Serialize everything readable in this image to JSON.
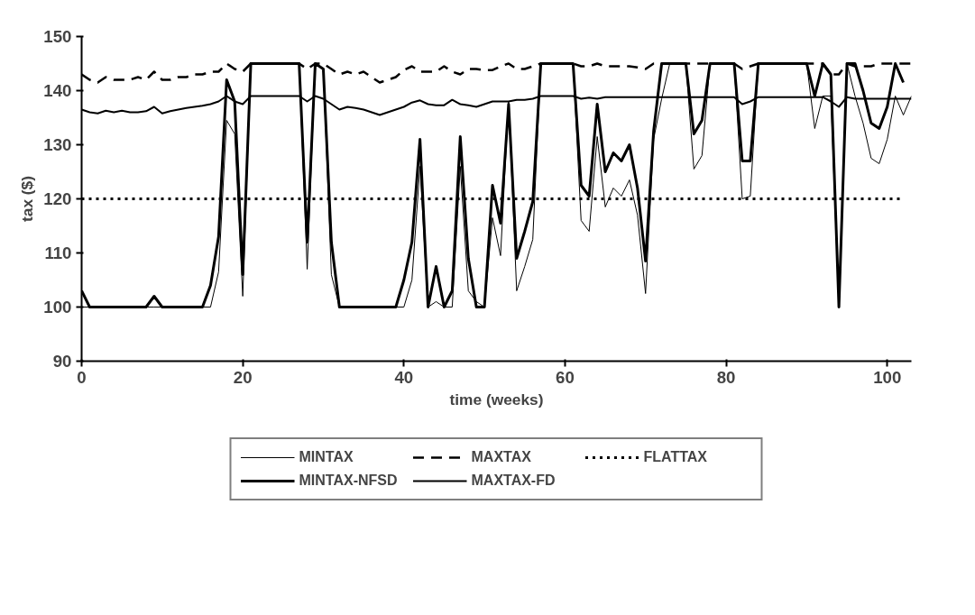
{
  "chart_data": {
    "type": "line",
    "xlabel": "time (weeks)",
    "ylabel": "tax ($)",
    "x": [
      0,
      1,
      2,
      3,
      4,
      5,
      6,
      7,
      8,
      9,
      10,
      11,
      12,
      13,
      14,
      15,
      16,
      17,
      18,
      19,
      20,
      21,
      22,
      23,
      24,
      25,
      26,
      27,
      28,
      29,
      30,
      31,
      32,
      33,
      34,
      35,
      36,
      37,
      38,
      39,
      40,
      41,
      42,
      43,
      44,
      45,
      46,
      47,
      48,
      49,
      50,
      51,
      52,
      53,
      54,
      55,
      56,
      57,
      58,
      59,
      60,
      61,
      62,
      63,
      64,
      65,
      66,
      67,
      68,
      69,
      70,
      71,
      72,
      73,
      74,
      75,
      76,
      77,
      78,
      79,
      80,
      81,
      82,
      83,
      84,
      85,
      86,
      87,
      88,
      89,
      90,
      91,
      92,
      93,
      94,
      95,
      96,
      97,
      98,
      99,
      100,
      101,
      102,
      103
    ],
    "series": [
      {
        "name": "MINTAX",
        "color": "#000000",
        "line_style": "solid",
        "values": [
          100,
          100,
          100,
          100,
          100,
          100,
          100,
          100,
          100,
          100,
          100,
          100,
          100,
          100,
          100,
          100,
          100,
          106.5,
          134.5,
          132,
          102,
          145,
          145,
          145,
          145,
          145,
          145,
          145,
          107,
          145,
          144,
          106,
          100,
          100,
          100,
          100,
          100,
          100,
          100,
          100,
          100,
          105,
          126,
          100,
          101,
          100,
          100,
          126,
          103,
          101,
          100,
          116.5,
          109.5,
          138,
          103,
          107.5,
          112.5,
          145,
          145,
          145,
          145,
          145,
          116,
          114,
          131.5,
          118.5,
          122,
          120.5,
          123.5,
          117,
          102.5,
          131,
          138.5,
          145,
          145,
          145,
          125.5,
          128,
          145,
          145,
          145,
          145,
          120,
          120.5,
          145,
          145,
          145,
          145,
          145,
          145,
          145,
          133,
          139,
          139,
          100,
          145,
          139,
          134,
          127.5,
          126.5,
          131,
          139,
          135.5,
          139
        ]
      },
      {
        "name": "MINTAX-NFSD",
        "color": "#000000",
        "line_style": "solid",
        "values": [
          103,
          100,
          100,
          100,
          100,
          100,
          100,
          100,
          100,
          102,
          100,
          100,
          100,
          100,
          100,
          100,
          104,
          113,
          142,
          138,
          106,
          145,
          145,
          145,
          145,
          145,
          145,
          145,
          112,
          145,
          144,
          112,
          100,
          100,
          100,
          100,
          100,
          100,
          100,
          100,
          105,
          112,
          131,
          100,
          107.5,
          100,
          103,
          131.5,
          109,
          100,
          100,
          122.5,
          115.5,
          137.5,
          109,
          114,
          119.5,
          145,
          145,
          145,
          145,
          145,
          122.5,
          120.5,
          137.5,
          125,
          128.5,
          127,
          130,
          122,
          108.5,
          132.5,
          145,
          145,
          145,
          145,
          132,
          134.5,
          145,
          145,
          145,
          145,
          127,
          127,
          145,
          145,
          145,
          145,
          145,
          145,
          145,
          139,
          145,
          143,
          100,
          145,
          145,
          140,
          134,
          133,
          137,
          145,
          141.5,
          null
        ]
      },
      {
        "name": "MAXTAX",
        "color": "#000000",
        "line_style": "dashed",
        "values": [
          143,
          142,
          141.5,
          142.5,
          142,
          142,
          142,
          142.5,
          142,
          143.5,
          142,
          142,
          142.5,
          142.5,
          143,
          143,
          143.5,
          143.5,
          145,
          144,
          143.5,
          145,
          145,
          145,
          145,
          145,
          145,
          145,
          144,
          145,
          145,
          144,
          143,
          143.5,
          143,
          143.5,
          142.5,
          141.5,
          142,
          142.5,
          143.8,
          144.5,
          143.5,
          143.5,
          143.5,
          144.5,
          143.5,
          143,
          144,
          144,
          143.8,
          143.8,
          144.5,
          145,
          144,
          144,
          144.5,
          145,
          145,
          145,
          145,
          145,
          144.5,
          144.5,
          145,
          144.5,
          144.5,
          144.5,
          144.5,
          144.3,
          144,
          145,
          145,
          145,
          145,
          145,
          145,
          145,
          145,
          145,
          145,
          145,
          144,
          144.5,
          145,
          145,
          145,
          145,
          145,
          145,
          145,
          145,
          145,
          143,
          143,
          145,
          144.5,
          144.5,
          144.5,
          145,
          145,
          145,
          145,
          145
        ]
      },
      {
        "name": "MAXTAX-FD",
        "color": "#000000",
        "line_style": "solid",
        "values": [
          136.5,
          136,
          135.8,
          136.3,
          136,
          136.3,
          136,
          136,
          136.2,
          137,
          135.8,
          136.2,
          136.5,
          136.8,
          137,
          137.2,
          137.5,
          138,
          139,
          138,
          137.5,
          139,
          139,
          139,
          139,
          139,
          139,
          139,
          138,
          139,
          138.5,
          137.5,
          136.5,
          137,
          136.8,
          136.5,
          136,
          135.5,
          136,
          136.5,
          137,
          137.8,
          138.2,
          137.5,
          137.3,
          137.3,
          138.3,
          137.5,
          137.3,
          137,
          137.5,
          138,
          138,
          138,
          138.3,
          138.3,
          138.5,
          139,
          139,
          139,
          139,
          139,
          138.5,
          138.7,
          138.5,
          138.8,
          138.8,
          138.8,
          138.8,
          138.8,
          138.8,
          138.8,
          138.8,
          138.8,
          138.8,
          138.8,
          138.8,
          138.8,
          138.8,
          138.8,
          138.8,
          138.8,
          137.5,
          138,
          138.8,
          138.8,
          138.8,
          138.8,
          138.8,
          138.8,
          138.8,
          138.8,
          138.8,
          138,
          137,
          138.8,
          138.5,
          138.5,
          138.5,
          138.5,
          138.5,
          138.5,
          138.5,
          138.5
        ]
      },
      {
        "name": "FLATTAX",
        "color": "#000000",
        "line_style": "dotted",
        "x": [
          0,
          102
        ],
        "values": [
          120,
          120
        ]
      }
    ],
    "xlim": [
      0,
      103
    ],
    "xticks": [
      0,
      20,
      40,
      60,
      80,
      100
    ],
    "ylim": [
      90,
      150
    ],
    "yticks": [
      90,
      100,
      110,
      120,
      130,
      140,
      150
    ],
    "grid": false,
    "legend": "bottom",
    "marker": "none"
  }
}
